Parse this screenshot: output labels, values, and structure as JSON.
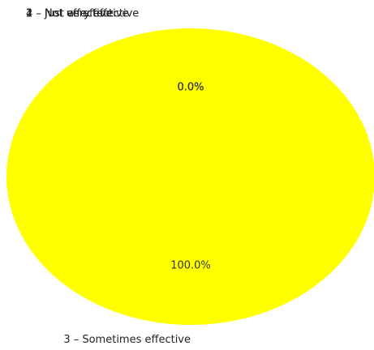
{
  "chart_data": {
    "type": "pie",
    "slices": [
      {
        "label": "1 – Not effective",
        "value": 0,
        "pct_label": "0.0%",
        "color": "#ffffff"
      },
      {
        "label": "2 – Not very effective",
        "value": 0,
        "pct_label": "0.0%",
        "color": "#ffffff"
      },
      {
        "label": "3 – Sometimes effective",
        "value": 100,
        "pct_label": "100.0%",
        "color": "#ffff00"
      },
      {
        "label": "4 – Just as effective",
        "value": 0,
        "pct_label": "0.0%",
        "color": "#ffffff"
      }
    ]
  }
}
